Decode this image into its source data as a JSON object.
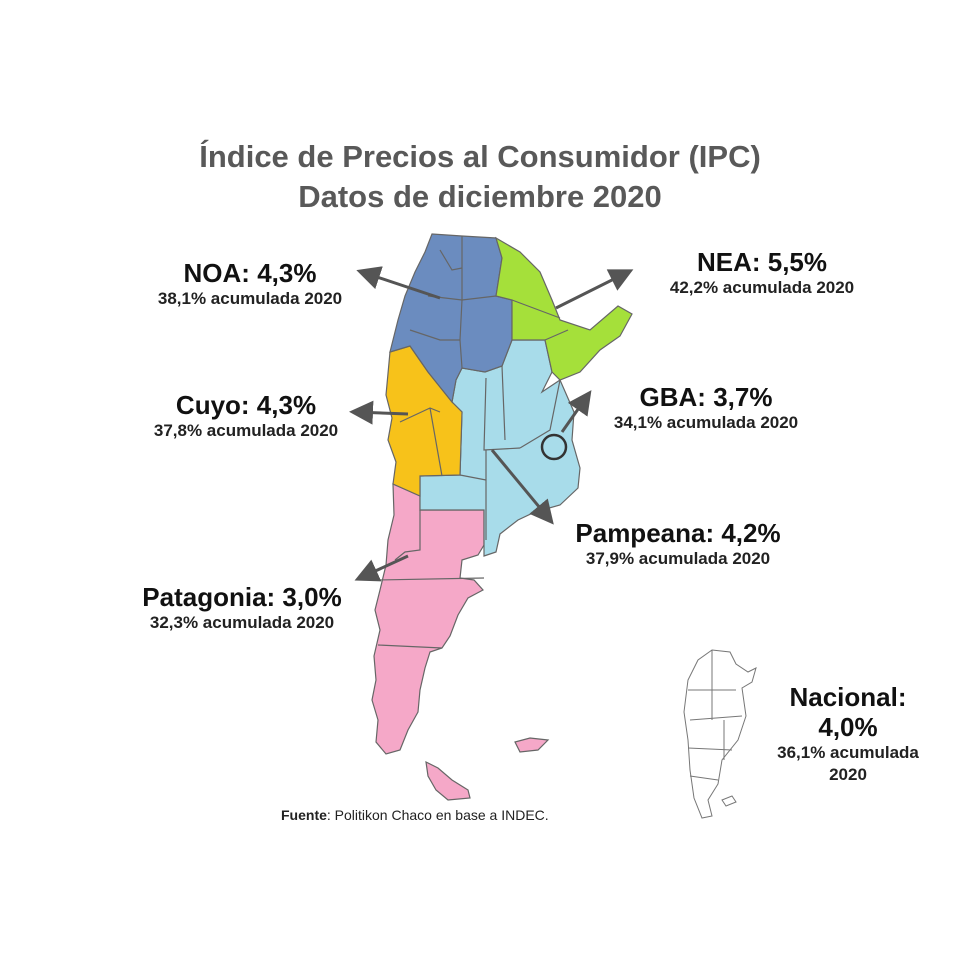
{
  "title": {
    "line1": "Índice de Precios al Consumidor (IPC)",
    "line2": "Datos de diciembre 2020"
  },
  "regions": {
    "noa": {
      "head": "NOA: 4,3%",
      "sub": "38,1% acumulada 2020",
      "monthly_pct": 4.3,
      "cumulative_pct": 38.1,
      "color": "#6b8cbf"
    },
    "nea": {
      "head": "NEA: 5,5%",
      "sub": "42,2% acumulada 2020",
      "monthly_pct": 5.5,
      "cumulative_pct": 42.2,
      "color": "#a5e03a"
    },
    "cuyo": {
      "head": "Cuyo: 4,3%",
      "sub": "37,8% acumulada 2020",
      "monthly_pct": 4.3,
      "cumulative_pct": 37.8,
      "color": "#f7c21a"
    },
    "gba": {
      "head": "GBA: 3,7%",
      "sub": "34,1% acumulada 2020",
      "monthly_pct": 3.7,
      "cumulative_pct": 34.1,
      "color": "#333333"
    },
    "pampeana": {
      "head": "Pampeana: 4,2%",
      "sub": "37,9% acumulada 2020",
      "monthly_pct": 4.2,
      "cumulative_pct": 37.9,
      "color": "#a8dcea"
    },
    "patagonia": {
      "head": "Patagonia: 3,0%",
      "sub": "32,3% acumulada 2020",
      "monthly_pct": 3.0,
      "cumulative_pct": 32.3,
      "color": "#f5a8c8"
    }
  },
  "nacional": {
    "line1": "Nacional:",
    "line2": "4,0%",
    "line3": "36,1% acumulada",
    "line4": "2020",
    "monthly_pct": 4.0,
    "cumulative_pct": 36.1
  },
  "source": {
    "label": "Fuente",
    "text": ": Politikon Chaco  en base a INDEC."
  }
}
